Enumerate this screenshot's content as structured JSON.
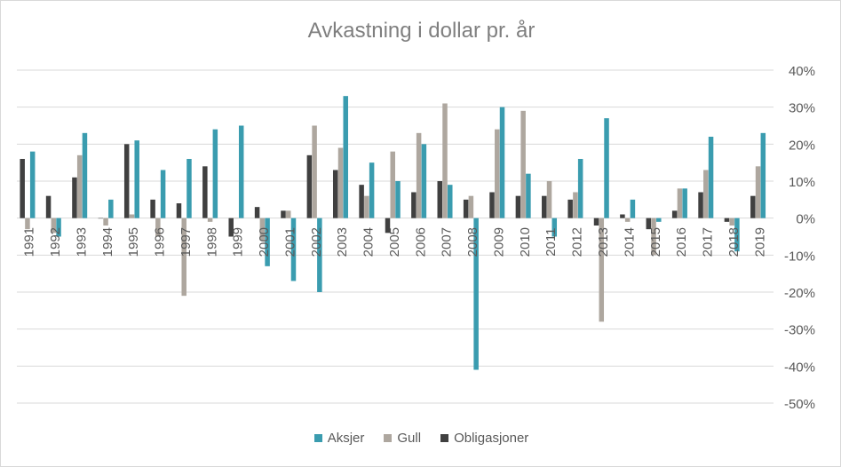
{
  "chart_data": {
    "type": "bar",
    "title": "Avkastning i dollar pr. år",
    "xlabel": "",
    "ylabel": "",
    "ylim": [
      -0.5,
      0.4
    ],
    "yticks": [
      0.4,
      0.3,
      0.2,
      0.1,
      0.0,
      -0.1,
      -0.2,
      -0.3,
      -0.4,
      -0.5
    ],
    "ytick_labels": [
      "40%",
      "30%",
      "20%",
      "10%",
      "0%",
      "-10%",
      "-20%",
      "-30%",
      "-40%",
      "-50%"
    ],
    "grid": true,
    "legend_position": "bottom",
    "categories": [
      "1991",
      "1992",
      "1993",
      "1994",
      "1995",
      "1996",
      "1997",
      "1998",
      "1999",
      "2000",
      "2001",
      "2002",
      "2003",
      "2004",
      "2005",
      "2006",
      "2007",
      "2008",
      "2009",
      "2010",
      "2011",
      "2012",
      "2013",
      "2014",
      "2015",
      "2016",
      "2017",
      "2018",
      "2019"
    ],
    "series": [
      {
        "name": "Obligasjoner",
        "color": "#404040",
        "values": [
          0.16,
          0.06,
          0.11,
          0.0,
          0.2,
          0.05,
          0.04,
          0.14,
          -0.05,
          0.03,
          0.02,
          0.17,
          0.13,
          0.09,
          -0.04,
          0.07,
          0.1,
          0.05,
          0.07,
          0.06,
          0.06,
          0.05,
          -0.02,
          0.01,
          -0.03,
          0.02,
          0.07,
          -0.01,
          0.06
        ]
      },
      {
        "name": "Gull",
        "color": "#aea79f",
        "values": [
          -0.03,
          -0.04,
          0.17,
          -0.02,
          0.01,
          -0.05,
          -0.21,
          -0.01,
          0.0,
          -0.06,
          0.02,
          0.25,
          0.19,
          0.06,
          0.18,
          0.23,
          0.31,
          0.06,
          0.24,
          0.29,
          0.1,
          0.07,
          -0.28,
          -0.01,
          -0.1,
          0.08,
          0.13,
          -0.02,
          0.14
        ]
      },
      {
        "name": "Aksjer",
        "color": "#3a9caf",
        "values": [
          0.18,
          -0.05,
          0.23,
          0.05,
          0.21,
          0.13,
          0.16,
          0.24,
          0.25,
          -0.13,
          -0.17,
          -0.2,
          0.33,
          0.15,
          0.1,
          0.2,
          0.09,
          -0.41,
          0.3,
          0.12,
          -0.05,
          0.16,
          0.27,
          0.05,
          -0.01,
          0.08,
          0.22,
          -0.09,
          0.23
        ]
      }
    ],
    "legend_order": [
      "Aksjer",
      "Gull",
      "Obligasjoner"
    ]
  }
}
